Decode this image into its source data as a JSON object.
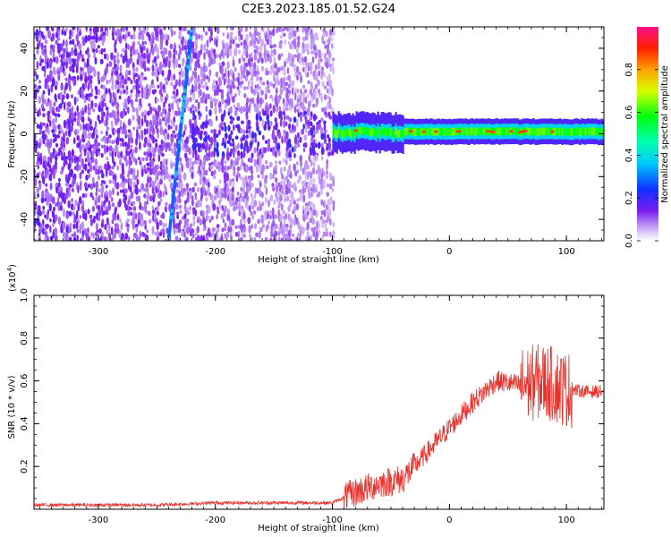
{
  "title": "C2E3.2023.185.01.52.G24",
  "spectrogram": {
    "xlabel": "Height of straight line (km)",
    "ylabel": "Frequency (Hz)",
    "x_ticks": [
      "-300",
      "-200",
      "-100",
      "0",
      "100"
    ],
    "y_ticks": [
      "-40",
      "-20",
      "0",
      "20",
      "40"
    ],
    "colorbar": {
      "label": "Normalized spectral amplitude",
      "ticks": [
        "0.0",
        "0.2",
        "0.4",
        "0.6",
        "0.8"
      ]
    }
  },
  "snr": {
    "xlabel": "Height of straight line (km)",
    "ylabel": "SNR (10 * v/v)",
    "y_multiplier": "(x10",
    "y_multiplier_exp": "4",
    "y_multiplier_close": ")",
    "x_ticks": [
      "-300",
      "-200",
      "-100",
      "0",
      "100"
    ],
    "y_ticks": [
      "0.2",
      "0.4",
      "0.6",
      "0.8",
      "1.0"
    ]
  },
  "colors": {
    "line": "#e8302a",
    "frame": "#000000"
  },
  "chart_data": [
    {
      "type": "heatmap",
      "title": "C2E3.2023.185.01.52.G24",
      "xlabel": "Height of straight line (km)",
      "ylabel": "Frequency (Hz)",
      "xlim": [
        -355,
        132
      ],
      "ylim": [
        -50,
        50
      ],
      "colorbar_range": [
        0,
        1
      ],
      "features": [
        {
          "name": "noise",
          "x_range": [
            -355,
            -100
          ],
          "y_range": [
            -50,
            50
          ],
          "amplitude": 0.12
        },
        {
          "name": "streak",
          "x_start": -240,
          "x_end": -220,
          "y_start": -50,
          "y_end": 50,
          "amplitude": 0.35
        },
        {
          "name": "signal-band",
          "x_range": [
            -100,
            132
          ],
          "y_center": 1,
          "y_halfwidth": 4,
          "amplitude": 0.6
        }
      ],
      "colorscale": "rainbow",
      "grid": false
    },
    {
      "type": "line",
      "xlabel": "Height of straight line (km)",
      "ylabel": "SNR (10 * v/v)",
      "xlim": [
        -355,
        132
      ],
      "ylim": [
        0,
        1.0
      ],
      "y_multiplier": 10000,
      "x": [
        -355,
        -300,
        -250,
        -200,
        -150,
        -100,
        -80,
        -60,
        -40,
        -20,
        0,
        20,
        40,
        60,
        80,
        100,
        120,
        132
      ],
      "values": [
        0.02,
        0.02,
        0.02,
        0.03,
        0.03,
        0.03,
        0.08,
        0.12,
        0.14,
        0.26,
        0.38,
        0.5,
        0.6,
        0.58,
        0.6,
        0.56,
        0.55,
        0.55
      ],
      "series": [
        {
          "values": [
            0.02,
            0.02,
            0.02,
            0.03,
            0.03,
            0.03,
            0.08,
            0.12,
            0.14,
            0.26,
            0.38,
            0.5,
            0.6,
            0.58,
            0.6,
            0.56,
            0.55,
            0.55
          ]
        }
      ],
      "grid": false
    }
  ]
}
